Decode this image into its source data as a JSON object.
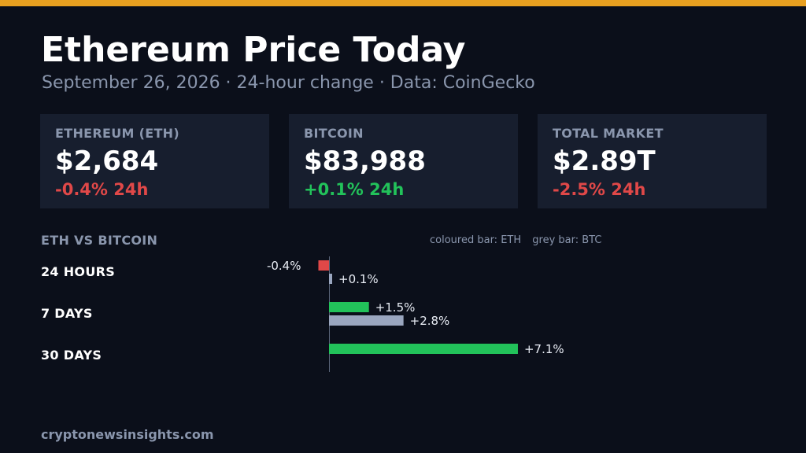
{
  "header": {
    "title": "Ethereum Price Today",
    "subtitle": "September 26, 2026  ·  24-hour change  ·  Data: CoinGecko"
  },
  "cards": [
    {
      "label": "ETHEREUM (ETH)",
      "value": "$2,684",
      "change": "-0.4% 24h",
      "direction": "down"
    },
    {
      "label": "BITCOIN",
      "value": "$83,988",
      "change": "+0.1% 24h",
      "direction": "up"
    },
    {
      "label": "TOTAL MARKET",
      "value": "$2.89T",
      "change": "-2.5% 24h",
      "direction": "down"
    }
  ],
  "colors": {
    "accent": "#e8a020",
    "negative": "#e04848",
    "positive": "#22c25a",
    "btc_bar": "#9aa6bf",
    "muted": "#8a96ad"
  },
  "chart_data": {
    "type": "bar",
    "orientation": "horizontal",
    "title": "ETH VS BITCOIN",
    "legend": [
      "coloured bar: ETH",
      "grey bar: BTC"
    ],
    "categories": [
      "24 HOURS",
      "7 DAYS",
      "30 DAYS"
    ],
    "series": [
      {
        "name": "ETH",
        "values": [
          -0.4,
          1.5,
          7.1
        ],
        "labels": [
          "-0.4%",
          "+1.5%",
          "+7.1%"
        ]
      },
      {
        "name": "BTC",
        "values": [
          0.1,
          2.8,
          null
        ],
        "labels": [
          "+0.1%",
          "+2.8%",
          ""
        ]
      }
    ],
    "unit": "%"
  },
  "footer": {
    "site": "cryptonewsinsights.com"
  }
}
